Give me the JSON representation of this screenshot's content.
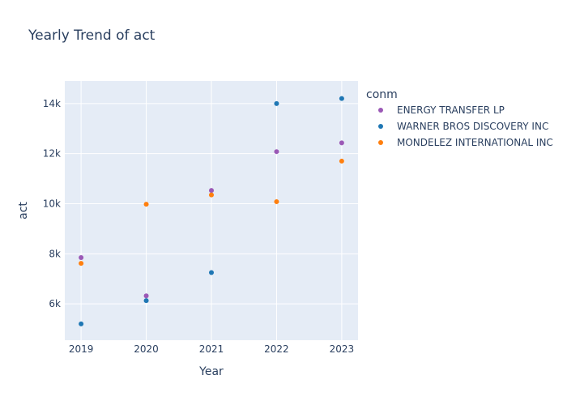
{
  "chart_data": {
    "type": "scatter",
    "title": "Yearly Trend of act",
    "xlabel": "Year",
    "ylabel": "act",
    "x": [
      2019,
      2020,
      2021,
      2022,
      2023
    ],
    "xlim": [
      2018.75,
      2023.25
    ],
    "ylim": [
      4550,
      14900
    ],
    "yticks": [
      6000,
      8000,
      10000,
      12000,
      14000
    ],
    "ytick_labels": [
      "6k",
      "8k",
      "10k",
      "12k",
      "14k"
    ],
    "grid": true,
    "legend": {
      "title": "conm",
      "placement": "right"
    },
    "series": [
      {
        "name": "ENERGY TRANSFER LP",
        "color": "#9b59b6",
        "values": [
          7850,
          6320,
          10530,
          12080,
          12430
        ]
      },
      {
        "name": "WARNER BROS DISCOVERY INC",
        "color": "#1f77b4",
        "values": [
          5200,
          6130,
          7250,
          14000,
          14200
        ]
      },
      {
        "name": "MONDELEZ INTERNATIONAL INC",
        "color": "#ff7f0e",
        "values": [
          7620,
          9980,
          10350,
          10080,
          11700
        ]
      }
    ]
  }
}
